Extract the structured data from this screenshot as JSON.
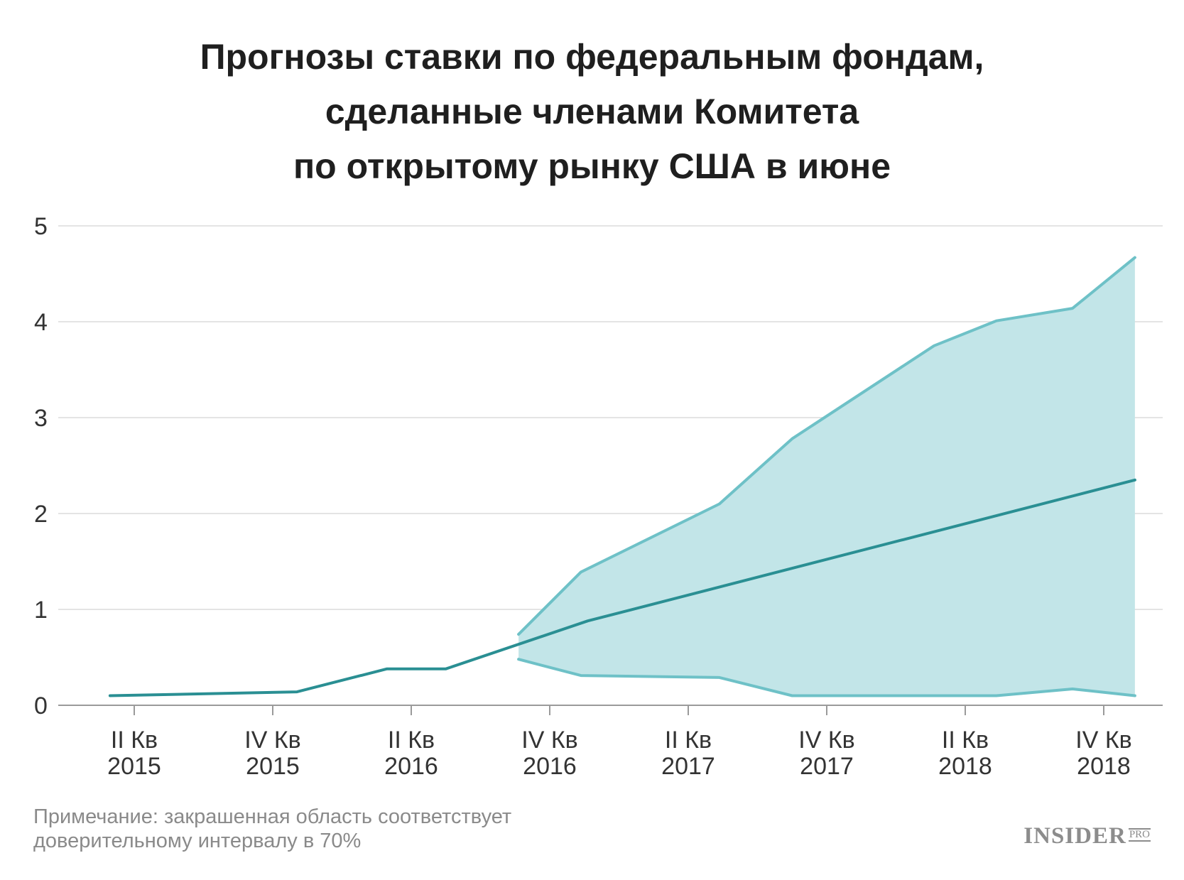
{
  "header": {
    "title_lines": [
      "Прогнозы ставки по федеральным фондам,",
      "сделанные членами Комитета",
      "по открытому рынку США в июне"
    ]
  },
  "chart_data": {
    "type": "line",
    "title": "Прогнозы ставки по федеральным фондам, сделанные членами Комитета по открытому рынку США в июне",
    "ylim": [
      0,
      5
    ],
    "y_ticks": [
      0,
      1,
      2,
      3,
      4,
      5
    ],
    "grid": true,
    "x_ticks": [
      {
        "q": 2,
        "line1": "II Кв",
        "line2": "2015"
      },
      {
        "q": 4,
        "line1": "IV Кв",
        "line2": "2015"
      },
      {
        "q": 6,
        "line1": "II Кв",
        "line2": "2016"
      },
      {
        "q": 8,
        "line1": "IV Кв",
        "line2": "2016"
      },
      {
        "q": 10,
        "line1": "II Кв",
        "line2": "2017"
      },
      {
        "q": 12,
        "line1": "IV Кв",
        "line2": "2017"
      },
      {
        "q": 14,
        "line1": "II Кв",
        "line2": "2018"
      },
      {
        "q": 16,
        "line1": "IV Кв",
        "line2": "2018"
      }
    ],
    "xlim": [
      0.6,
      17.2
    ],
    "series": [
      {
        "role": "central",
        "color": "#2a8f93",
        "points": [
          [
            1.65,
            0.1
          ],
          [
            4.35,
            0.14
          ],
          [
            5.65,
            0.38
          ],
          [
            6.5,
            0.38
          ],
          [
            8.55,
            0.88
          ],
          [
            16.45,
            2.35
          ]
        ]
      },
      {
        "role": "upper",
        "color": "#6ec1c7",
        "points": [
          [
            7.55,
            0.74
          ],
          [
            8.45,
            1.39
          ],
          [
            10.45,
            2.1
          ],
          [
            11.5,
            2.78
          ],
          [
            13.55,
            3.75
          ],
          [
            14.45,
            4.01
          ],
          [
            15.55,
            4.14
          ],
          [
            16.45,
            4.67
          ]
        ]
      },
      {
        "role": "lower",
        "color": "#6ec1c7",
        "points": [
          [
            7.55,
            0.48
          ],
          [
            8.45,
            0.31
          ],
          [
            10.45,
            0.29
          ],
          [
            11.5,
            0.1
          ],
          [
            13.55,
            0.1
          ],
          [
            14.45,
            0.1
          ],
          [
            15.55,
            0.17
          ],
          [
            16.45,
            0.1
          ]
        ]
      }
    ],
    "band_color": "#c2e5e8",
    "grid_color": "#dcdcdc",
    "axis_color": "#9a9a9a"
  },
  "footer": {
    "note_lines": [
      "Примечание: закрашенная область соответствует",
      "доверительному интервалу в 70%"
    ],
    "logo_main": "INSIDER",
    "logo_sub": "PRO"
  }
}
